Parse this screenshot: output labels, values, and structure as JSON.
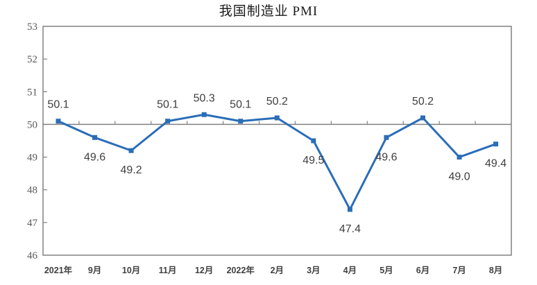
{
  "chart_data": {
    "type": "line",
    "title": "我国制造业 PMI",
    "categories": [
      "2021年",
      "9月",
      "10月",
      "11月",
      "12月",
      "2022年",
      "2月",
      "3月",
      "4月",
      "5月",
      "6月",
      "7月",
      "8月"
    ],
    "values": [
      50.1,
      49.6,
      49.2,
      50.1,
      50.3,
      50.1,
      50.2,
      49.5,
      47.4,
      49.6,
      50.2,
      49.0,
      49.4
    ],
    "data_labels": [
      "50.1",
      "49.6",
      "49.2",
      "50.1",
      "50.3",
      "50.1",
      "50.2",
      "49.5",
      "47.4",
      "49.6",
      "50.2",
      "49.0",
      "49.4"
    ],
    "xlabel": "",
    "ylabel": "",
    "ylim": [
      46,
      53
    ],
    "yticks": [
      46,
      47,
      48,
      49,
      50,
      51,
      52,
      53
    ],
    "reference_line": 50,
    "grid": false,
    "legend_position": "none",
    "colors": {
      "series_line": "#2A6DB8",
      "marker": "#2A6DB8",
      "reference_line": "#808080",
      "plot_border": "#808080",
      "y_axis_text": "#595959",
      "x_axis_text": "#404040",
      "data_label_text": "#3F3F3F",
      "background": "#ffffff"
    }
  }
}
